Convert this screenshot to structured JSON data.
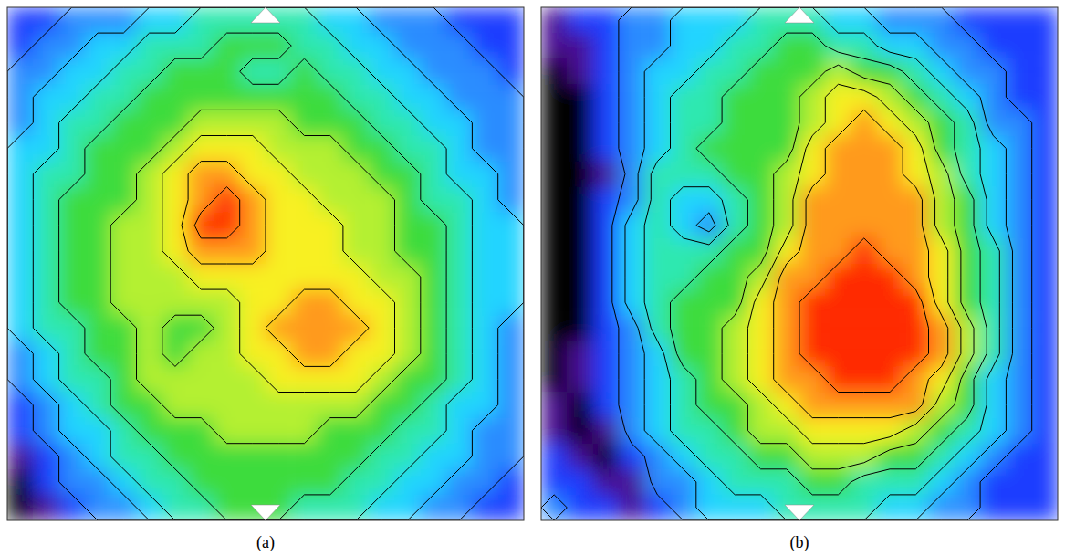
{
  "chart_data": [
    {
      "type": "heatmap",
      "title": "(a)",
      "tick_labels": false,
      "crange": [
        0,
        10
      ],
      "contour_levels": [
        2.5,
        3.5,
        4.5,
        5.5,
        6.5,
        7.5,
        8.5,
        9.5
      ],
      "cells": [
        [
          2,
          2,
          3,
          3,
          3,
          4,
          4,
          5,
          5,
          5,
          5,
          5,
          4,
          4,
          3,
          3,
          3,
          2,
          2,
          2
        ],
        [
          2,
          3,
          3,
          4,
          4,
          5,
          5,
          5,
          6,
          6,
          6,
          5,
          5,
          4,
          4,
          3,
          3,
          3,
          2,
          2
        ],
        [
          3,
          3,
          4,
          4,
          5,
          5,
          6,
          6,
          6,
          5,
          5,
          6,
          5,
          5,
          4,
          4,
          3,
          3,
          3,
          2
        ],
        [
          3,
          4,
          4,
          5,
          5,
          6,
          6,
          6,
          6,
          6,
          6,
          6,
          6,
          5,
          5,
          4,
          4,
          3,
          3,
          3
        ],
        [
          3,
          4,
          5,
          5,
          6,
          6,
          6,
          7,
          7,
          7,
          7,
          6,
          6,
          6,
          5,
          5,
          4,
          4,
          3,
          3
        ],
        [
          4,
          4,
          5,
          6,
          6,
          6,
          7,
          8,
          8,
          8,
          7,
          7,
          7,
          6,
          6,
          5,
          5,
          4,
          3,
          3
        ],
        [
          4,
          5,
          5,
          6,
          6,
          7,
          8,
          9,
          9,
          8,
          8,
          7,
          7,
          7,
          6,
          6,
          5,
          4,
          4,
          3
        ],
        [
          4,
          5,
          6,
          6,
          6,
          7,
          8,
          9,
          10,
          9,
          8,
          8,
          7,
          7,
          7,
          6,
          5,
          5,
          4,
          3
        ],
        [
          4,
          5,
          6,
          6,
          7,
          7,
          8,
          10,
          10,
          9,
          8,
          8,
          8,
          7,
          7,
          6,
          6,
          5,
          4,
          4
        ],
        [
          4,
          5,
          6,
          6,
          7,
          7,
          8,
          9,
          9,
          9,
          8,
          8,
          8,
          7,
          7,
          6,
          6,
          5,
          4,
          4
        ],
        [
          4,
          5,
          6,
          6,
          7,
          7,
          7,
          8,
          8,
          8,
          8,
          8,
          8,
          8,
          7,
          7,
          6,
          5,
          4,
          4
        ],
        [
          4,
          5,
          6,
          6,
          7,
          7,
          7,
          7,
          7,
          8,
          8,
          9,
          9,
          8,
          8,
          7,
          6,
          5,
          4,
          4
        ],
        [
          4,
          5,
          5,
          6,
          6,
          7,
          6,
          6,
          7,
          8,
          9,
          9,
          9,
          9,
          8,
          7,
          6,
          5,
          4,
          3
        ],
        [
          3,
          4,
          5,
          6,
          6,
          7,
          6,
          7,
          7,
          8,
          8,
          9,
          9,
          8,
          8,
          7,
          6,
          5,
          4,
          3
        ],
        [
          3,
          4,
          5,
          5,
          6,
          7,
          7,
          7,
          7,
          7,
          8,
          8,
          8,
          8,
          7,
          6,
          6,
          5,
          4,
          3
        ],
        [
          2,
          3,
          4,
          5,
          6,
          6,
          7,
          7,
          7,
          7,
          7,
          7,
          7,
          7,
          6,
          6,
          5,
          4,
          4,
          3
        ],
        [
          2,
          3,
          4,
          4,
          5,
          6,
          6,
          6,
          7,
          7,
          7,
          7,
          6,
          6,
          6,
          5,
          5,
          4,
          3,
          3
        ],
        [
          1,
          2,
          3,
          4,
          5,
          5,
          6,
          6,
          6,
          6,
          6,
          6,
          6,
          6,
          5,
          5,
          4,
          4,
          3,
          3
        ],
        [
          0,
          2,
          3,
          3,
          4,
          5,
          5,
          6,
          6,
          6,
          6,
          6,
          6,
          5,
          5,
          4,
          4,
          3,
          3,
          2
        ],
        [
          0,
          1,
          2,
          3,
          3,
          4,
          5,
          5,
          6,
          6,
          6,
          5,
          5,
          5,
          4,
          4,
          3,
          3,
          2,
          2
        ]
      ]
    },
    {
      "type": "heatmap",
      "title": "(b)",
      "tick_labels": false,
      "crange": [
        0,
        10
      ],
      "contour_levels": [
        2.5,
        3.5,
        4.5,
        5.5,
        6.5,
        7.5,
        8.5,
        9.5
      ],
      "cells": [
        [
          1,
          2,
          2,
          3,
          3,
          4,
          4,
          4,
          5,
          5,
          5,
          4,
          4,
          3,
          3,
          3,
          2,
          2,
          2,
          2
        ],
        [
          1,
          1,
          2,
          3,
          3,
          4,
          4,
          5,
          5,
          6,
          6,
          5,
          5,
          4,
          4,
          3,
          3,
          2,
          2,
          2
        ],
        [
          0,
          1,
          2,
          3,
          4,
          4,
          5,
          5,
          6,
          6,
          6,
          7,
          6,
          6,
          5,
          4,
          3,
          3,
          2,
          2
        ],
        [
          0,
          0,
          2,
          3,
          4,
          5,
          5,
          6,
          6,
          6,
          7,
          8,
          8,
          7,
          6,
          5,
          4,
          3,
          2,
          2
        ],
        [
          0,
          0,
          2,
          3,
          4,
          5,
          5,
          6,
          6,
          6,
          7,
          8,
          9,
          8,
          7,
          6,
          5,
          3,
          3,
          2
        ],
        [
          0,
          0,
          2,
          3,
          4,
          5,
          6,
          6,
          6,
          6,
          8,
          9,
          9,
          9,
          8,
          6,
          5,
          4,
          3,
          2
        ],
        [
          0,
          0,
          1,
          3,
          5,
          5,
          5,
          6,
          6,
          7,
          8,
          9,
          9,
          9,
          8,
          7,
          5,
          4,
          3,
          2
        ],
        [
          0,
          0,
          2,
          3,
          5,
          4,
          4,
          5,
          6,
          7,
          9,
          9,
          9,
          9,
          9,
          7,
          6,
          4,
          3,
          2
        ],
        [
          0,
          0,
          2,
          4,
          5,
          4,
          3,
          5,
          6,
          7,
          9,
          9,
          9,
          9,
          9,
          7,
          6,
          4,
          3,
          2
        ],
        [
          0,
          0,
          2,
          4,
          5,
          5,
          5,
          6,
          6,
          8,
          9,
          9,
          10,
          9,
          9,
          8,
          6,
          5,
          3,
          2
        ],
        [
          0,
          0,
          2,
          4,
          5,
          5,
          6,
          6,
          7,
          9,
          9,
          10,
          10,
          10,
          9,
          8,
          6,
          5,
          3,
          2
        ],
        [
          0,
          0,
          2,
          4,
          5,
          6,
          6,
          6,
          8,
          9,
          10,
          10,
          10,
          10,
          10,
          8,
          6,
          5,
          3,
          2
        ],
        [
          0,
          0,
          2,
          3,
          5,
          6,
          6,
          7,
          8,
          9,
          10,
          10,
          10,
          10,
          10,
          9,
          7,
          5,
          3,
          2
        ],
        [
          0,
          1,
          2,
          3,
          4,
          6,
          6,
          7,
          8,
          9,
          10,
          10,
          10,
          10,
          10,
          9,
          7,
          5,
          3,
          2
        ],
        [
          0,
          1,
          2,
          3,
          4,
          5,
          6,
          7,
          8,
          9,
          9,
          10,
          10,
          10,
          9,
          8,
          6,
          4,
          3,
          2
        ],
        [
          1,
          0,
          2,
          3,
          4,
          5,
          6,
          6,
          7,
          8,
          9,
          9,
          9,
          9,
          9,
          7,
          6,
          4,
          3,
          2
        ],
        [
          1,
          0,
          1,
          3,
          4,
          5,
          5,
          6,
          7,
          7,
          8,
          8,
          8,
          8,
          7,
          6,
          5,
          4,
          3,
          2
        ],
        [
          2,
          1,
          0,
          2,
          3,
          4,
          5,
          5,
          6,
          6,
          7,
          7,
          7,
          6,
          6,
          5,
          4,
          3,
          2,
          2
        ],
        [
          2,
          2,
          1,
          1,
          3,
          3,
          4,
          5,
          5,
          5,
          6,
          6,
          5,
          5,
          5,
          4,
          3,
          2,
          2,
          2
        ],
        [
          3,
          2,
          2,
          1,
          2,
          3,
          4,
          4,
          4,
          5,
          5,
          5,
          5,
          4,
          4,
          3,
          3,
          2,
          2,
          2
        ]
      ]
    }
  ]
}
